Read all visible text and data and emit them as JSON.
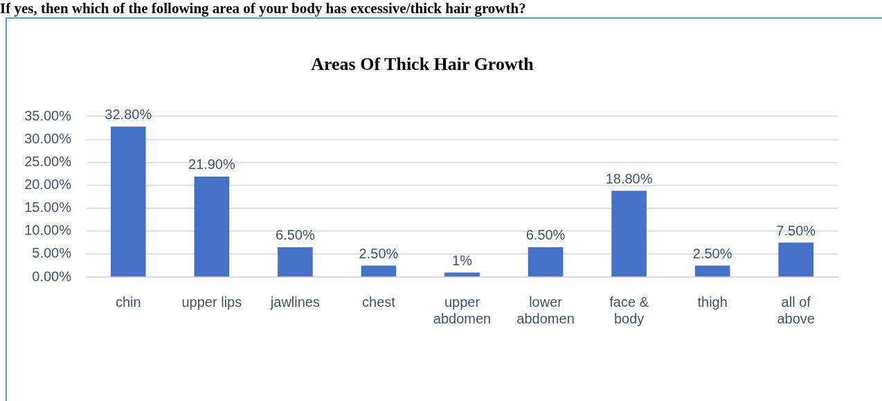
{
  "chart_data": {
    "type": "bar",
    "title": "Areas Of Thick Hair Growth",
    "annotations": [
      "If yes, then which of the following area of your body has excessive/thick hair growth?"
    ],
    "categories": [
      "chin",
      "upper lips",
      "jawlines",
      "chest",
      "upper abdomen",
      "lower abdomen",
      "face & body",
      "thigh",
      "all of above"
    ],
    "values": [
      32.8,
      21.9,
      6.5,
      2.5,
      1,
      6.5,
      18.8,
      2.5,
      7.5
    ],
    "value_labels": [
      "32.80%",
      "21.90%",
      "6.50%",
      "2.50%",
      "1%",
      "6.50%",
      "18.80%",
      "2.50%",
      "7.50%"
    ],
    "color": "#4571c9",
    "ylim": [
      0,
      35
    ],
    "yticks": [
      {
        "value": 0,
        "label": "0.00%"
      },
      {
        "value": 5,
        "label": "5.00%"
      },
      {
        "value": 10,
        "label": "10.00%"
      },
      {
        "value": 15,
        "label": "15.00%"
      },
      {
        "value": 20,
        "label": "20.00%"
      },
      {
        "value": 25,
        "label": "25.00%"
      },
      {
        "value": 30,
        "label": "30.00%"
      },
      {
        "value": 35,
        "label": "35.00%"
      }
    ],
    "grid": "y"
  }
}
